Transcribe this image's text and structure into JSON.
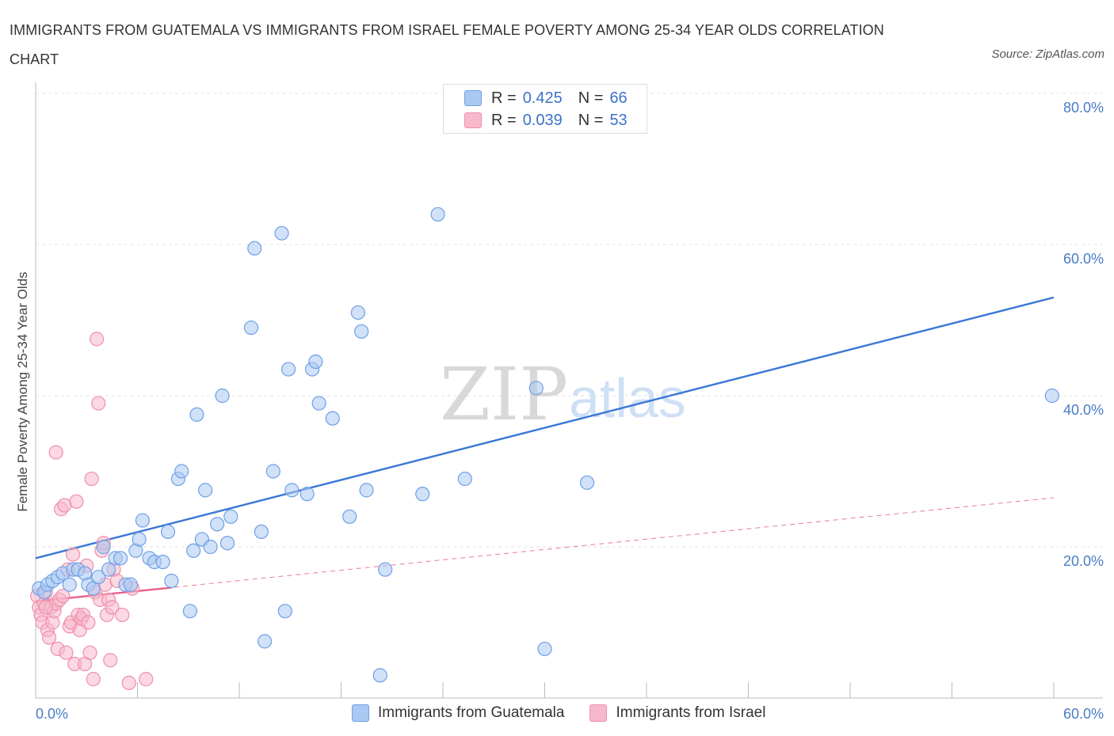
{
  "header": {
    "title": "IMMIGRANTS FROM GUATEMALA VS IMMIGRANTS FROM ISRAEL FEMALE POVERTY AMONG 25-34 YEAR OLDS CORRELATION CHART",
    "source": "Source: ZipAtlas.com"
  },
  "watermark": {
    "zip": "ZIP",
    "atlas": "atlas"
  },
  "legend": {
    "rows": [
      {
        "r_label": "R =",
        "r_value": "0.425",
        "n_label": "N =",
        "n_value": "66",
        "color": "#a9c8f2"
      },
      {
        "r_label": "R =",
        "r_value": "0.039",
        "n_label": "N =",
        "n_value": "53",
        "color": "#f7b8cb"
      }
    ]
  },
  "bottom_legend": {
    "items": [
      {
        "label": "Immigrants from Guatemala",
        "color": "#a9c8f2"
      },
      {
        "label": "Immigrants from Israel",
        "color": "#f7b8cb"
      }
    ]
  },
  "chart_data": {
    "type": "scatter",
    "title": "IMMIGRANTS FROM GUATEMALA VS IMMIGRANTS FROM ISRAEL FEMALE POVERTY AMONG 25-34 YEAR OLDS CORRELATION CHART",
    "xlabel": "",
    "ylabel": "Female Poverty Among 25-34 Year Olds",
    "xlim": [
      0,
      60
    ],
    "ylim": [
      0,
      80
    ],
    "x_tick_labels": [
      "0.0%",
      "60.0%"
    ],
    "y_tick_labels": [
      "20.0%",
      "40.0%",
      "60.0%",
      "80.0%"
    ],
    "y_ticks": [
      20,
      40,
      60,
      80
    ],
    "grid": true,
    "legend_position": "top-center",
    "series": [
      {
        "name": "Immigrants from Guatemala",
        "color": "#6fa0e6",
        "fill": "#a9c8f2",
        "R": 0.425,
        "N": 66,
        "trend": {
          "x": [
            0,
            60
          ],
          "y": [
            18.5,
            53.0
          ],
          "style": "solid"
        },
        "points": [
          [
            0.2,
            14.5
          ],
          [
            0.5,
            14.0
          ],
          [
            0.7,
            15.0
          ],
          [
            1.0,
            15.5
          ],
          [
            1.3,
            16.0
          ],
          [
            1.6,
            16.5
          ],
          [
            2.0,
            15.0
          ],
          [
            2.2,
            17.0
          ],
          [
            2.5,
            17.0
          ],
          [
            2.9,
            16.5
          ],
          [
            3.1,
            15.0
          ],
          [
            3.4,
            14.5
          ],
          [
            3.7,
            16.0
          ],
          [
            4.0,
            20.0
          ],
          [
            4.3,
            17.0
          ],
          [
            4.7,
            18.5
          ],
          [
            5.0,
            18.5
          ],
          [
            5.3,
            15.0
          ],
          [
            5.6,
            15.0
          ],
          [
            5.9,
            19.5
          ],
          [
            6.1,
            21.0
          ],
          [
            6.3,
            23.5
          ],
          [
            6.7,
            18.5
          ],
          [
            7.0,
            18.0
          ],
          [
            7.5,
            18.0
          ],
          [
            7.8,
            22.0
          ],
          [
            8.0,
            15.5
          ],
          [
            8.4,
            29.0
          ],
          [
            8.6,
            30.0
          ],
          [
            9.1,
            11.5
          ],
          [
            9.3,
            19.5
          ],
          [
            9.5,
            37.5
          ],
          [
            9.8,
            21.0
          ],
          [
            10.0,
            27.5
          ],
          [
            10.3,
            20.0
          ],
          [
            10.7,
            23.0
          ],
          [
            11.0,
            40.0
          ],
          [
            11.3,
            20.5
          ],
          [
            11.5,
            24.0
          ],
          [
            12.7,
            49.0
          ],
          [
            12.9,
            59.5
          ],
          [
            13.3,
            22.0
          ],
          [
            13.5,
            7.5
          ],
          [
            14.0,
            30.0
          ],
          [
            14.5,
            61.5
          ],
          [
            14.7,
            11.5
          ],
          [
            14.9,
            43.5
          ],
          [
            15.1,
            27.5
          ],
          [
            16.0,
            27.0
          ],
          [
            16.3,
            43.5
          ],
          [
            16.5,
            44.5
          ],
          [
            16.7,
            39.0
          ],
          [
            17.5,
            37.0
          ],
          [
            18.5,
            24.0
          ],
          [
            19.0,
            51.0
          ],
          [
            19.2,
            48.5
          ],
          [
            19.5,
            27.5
          ],
          [
            20.3,
            3.0
          ],
          [
            20.6,
            17.0
          ],
          [
            22.8,
            27.0
          ],
          [
            23.7,
            64.0
          ],
          [
            25.3,
            29.0
          ],
          [
            29.5,
            41.0
          ],
          [
            30.0,
            6.5
          ],
          [
            32.5,
            28.5
          ],
          [
            59.9,
            40.0
          ]
        ]
      },
      {
        "name": "Immigrants from Israel",
        "color": "#ee8fae",
        "fill": "#f7b8cb",
        "R": 0.039,
        "N": 53,
        "trend": {
          "x": [
            0,
            8
          ],
          "y": [
            12.8,
            14.6
          ],
          "x_extended": [
            0,
            60
          ],
          "y_extended": [
            12.8,
            26.5
          ],
          "style": "solid-then-dashed"
        },
        "points": [
          [
            0.1,
            13.5
          ],
          [
            0.2,
            12.0
          ],
          [
            0.3,
            11.0
          ],
          [
            0.4,
            10.0
          ],
          [
            0.5,
            12.5
          ],
          [
            0.6,
            14.0
          ],
          [
            0.7,
            9.0
          ],
          [
            0.8,
            8.0
          ],
          [
            0.9,
            12.0
          ],
          [
            1.0,
            10.0
          ],
          [
            1.1,
            11.5
          ],
          [
            1.2,
            12.5
          ],
          [
            1.3,
            6.5
          ],
          [
            1.4,
            13.0
          ],
          [
            1.5,
            25.0
          ],
          [
            1.6,
            13.5
          ],
          [
            1.7,
            25.5
          ],
          [
            1.8,
            6.0
          ],
          [
            1.9,
            17.0
          ],
          [
            2.0,
            9.5
          ],
          [
            2.1,
            10.0
          ],
          [
            2.2,
            19.0
          ],
          [
            2.3,
            4.5
          ],
          [
            2.4,
            26.0
          ],
          [
            2.5,
            11.0
          ],
          [
            2.6,
            9.0
          ],
          [
            2.7,
            10.5
          ],
          [
            2.8,
            11.0
          ],
          [
            2.9,
            4.5
          ],
          [
            3.0,
            17.5
          ],
          [
            3.1,
            10.0
          ],
          [
            3.2,
            6.0
          ],
          [
            3.3,
            29.0
          ],
          [
            3.4,
            2.5
          ],
          [
            3.5,
            14.0
          ],
          [
            3.6,
            47.5
          ],
          [
            3.7,
            39.0
          ],
          [
            3.8,
            13.0
          ],
          [
            3.9,
            19.5
          ],
          [
            4.0,
            20.5
          ],
          [
            4.1,
            15.0
          ],
          [
            4.2,
            11.0
          ],
          [
            4.3,
            13.0
          ],
          [
            4.4,
            5.0
          ],
          [
            4.5,
            12.0
          ],
          [
            4.6,
            17.0
          ],
          [
            4.8,
            15.5
          ],
          [
            5.1,
            11.0
          ],
          [
            5.5,
            2.0
          ],
          [
            5.7,
            14.5
          ],
          [
            6.5,
            2.5
          ],
          [
            1.2,
            32.5
          ],
          [
            0.6,
            12.0
          ]
        ]
      }
    ]
  }
}
